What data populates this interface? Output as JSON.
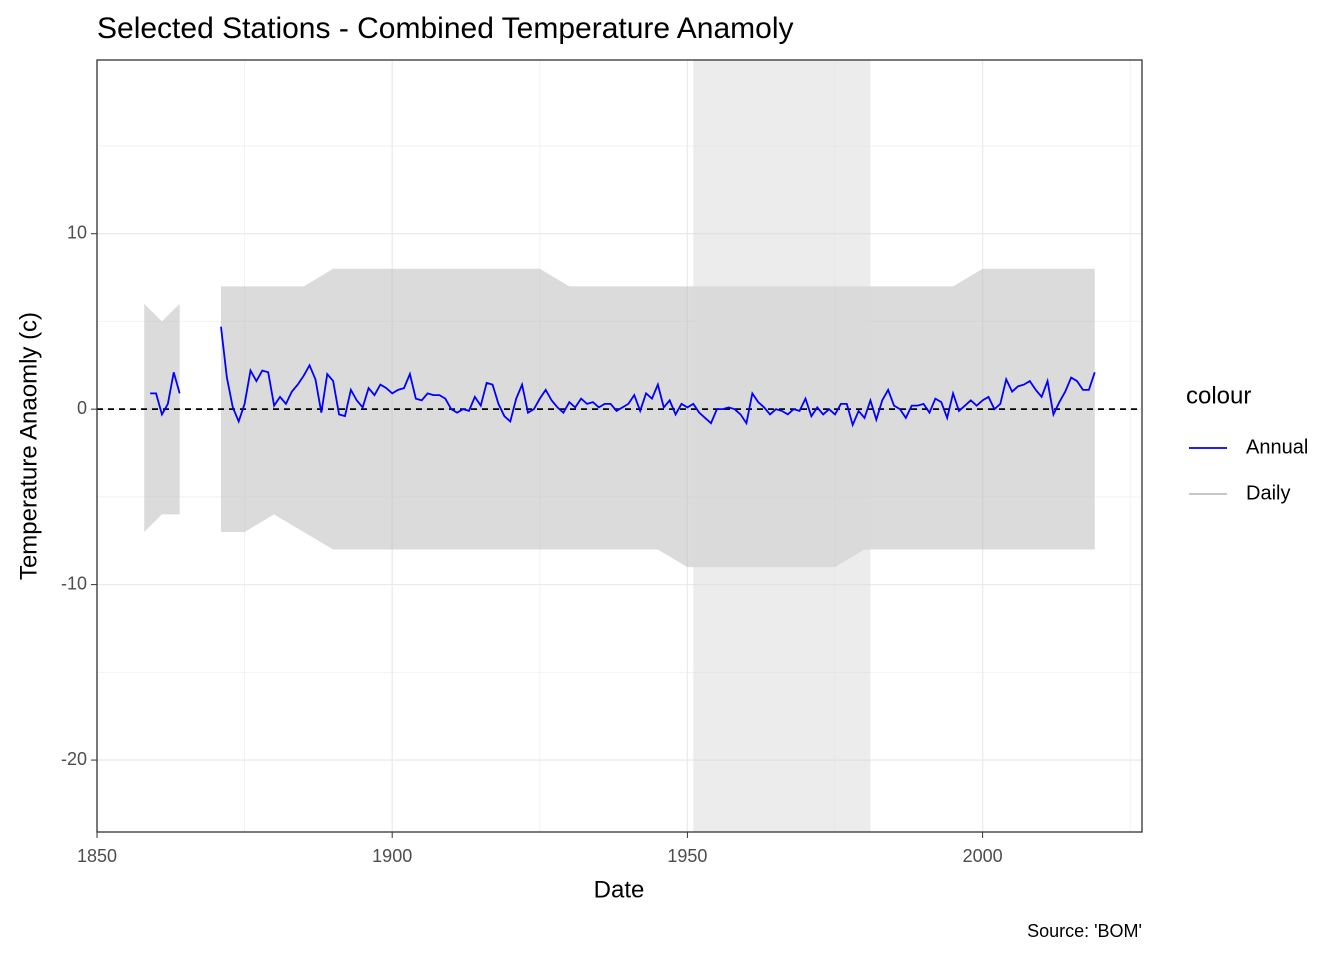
{
  "chart_data": {
    "type": "line",
    "title": "Selected Stations - Combined Temperature Anamoly",
    "x_label": "Date",
    "y_label": "Temperature Anaomly (c)",
    "caption": "Source: 'BOM'",
    "legend_title": "colour",
    "xlim": [
      1850,
      2027
    ],
    "xticks": [
      1850,
      1900,
      1950,
      2000
    ],
    "ylim": [
      -24.1,
      19.9
    ],
    "yticks": [
      -20,
      -10,
      0,
      10
    ],
    "grid": true,
    "hline": 0,
    "highlight": [
      1951,
      1981
    ],
    "legend_position": "right",
    "series": [
      {
        "name": "Annual",
        "color": "#0000ff",
        "x": [
          1859,
          1860,
          1861,
          1862,
          1863,
          1864,
          1865,
          1871,
          1872,
          1873,
          1874,
          1875,
          1876,
          1877,
          1878,
          1879,
          1880,
          1881,
          1882,
          1883,
          1884,
          1885,
          1886,
          1887,
          1888,
          1889,
          1890,
          1891,
          1892,
          1893,
          1894,
          1895,
          1896,
          1897,
          1898,
          1899,
          1900,
          1901,
          1902,
          1903,
          1904,
          1905,
          1906,
          1907,
          1908,
          1909,
          1910,
          1911,
          1912,
          1913,
          1914,
          1915,
          1916,
          1917,
          1918,
          1919,
          1920,
          1921,
          1922,
          1923,
          1924,
          1925,
          1926,
          1927,
          1928,
          1929,
          1930,
          1931,
          1932,
          1933,
          1934,
          1935,
          1936,
          1937,
          1938,
          1939,
          1940,
          1941,
          1942,
          1943,
          1944,
          1945,
          1946,
          1947,
          1948,
          1949,
          1950,
          1951,
          1952,
          1953,
          1954,
          1955,
          1956,
          1957,
          1958,
          1959,
          1960,
          1961,
          1962,
          1963,
          1964,
          1965,
          1966,
          1967,
          1968,
          1969,
          1970,
          1971,
          1972,
          1973,
          1974,
          1975,
          1976,
          1977,
          1978,
          1979,
          1980,
          1981,
          1982,
          1983,
          1984,
          1985,
          1986,
          1987,
          1988,
          1989,
          1990,
          1991,
          1992,
          1993,
          1994,
          1995,
          1996,
          1997,
          1998,
          1999,
          2000,
          2001,
          2002,
          2003,
          2004,
          2005,
          2006,
          2007,
          2008,
          2009,
          2010,
          2011,
          2012,
          2013,
          2014,
          2015,
          2016,
          2017,
          2018,
          2019
        ],
        "values": [
          0.9,
          0.9,
          -0.3,
          0.3,
          2.1,
          0.9,
          null,
          4.7,
          1.8,
          0.1,
          -0.7,
          0.3,
          2.2,
          1.6,
          2.2,
          2.1,
          0.2,
          0.7,
          0.3,
          1.0,
          1.4,
          1.9,
          2.5,
          1.7,
          -0.2,
          2.0,
          1.6,
          -0.3,
          -0.4,
          1.1,
          0.5,
          0.1,
          1.2,
          0.8,
          1.4,
          1.2,
          0.9,
          1.1,
          1.2,
          2.0,
          0.6,
          0.5,
          0.9,
          0.8,
          0.8,
          0.6,
          0.0,
          -0.2,
          0.0,
          -0.1,
          0.7,
          0.2,
          1.5,
          1.4,
          0.3,
          -0.4,
          -0.7,
          0.6,
          1.4,
          -0.2,
          0.0,
          0.6,
          1.1,
          0.5,
          0.1,
          -0.2,
          0.4,
          0.1,
          0.6,
          0.3,
          0.4,
          0.1,
          0.3,
          0.3,
          -0.1,
          0.1,
          0.3,
          0.8,
          -0.1,
          0.9,
          0.6,
          1.4,
          0.1,
          0.5,
          -0.3,
          0.3,
          0.1,
          0.3,
          -0.2,
          -0.5,
          -0.8,
          0.0,
          0.0,
          0.1,
          0.0,
          -0.3,
          -0.8,
          0.9,
          0.4,
          0.1,
          -0.3,
          0.0,
          -0.1,
          -0.3,
          0.0,
          -0.1,
          0.6,
          -0.4,
          0.1,
          -0.3,
          0.0,
          -0.3,
          0.3,
          0.3,
          -0.9,
          -0.1,
          -0.5,
          0.5,
          -0.6,
          0.5,
          1.1,
          0.2,
          0.0,
          -0.5,
          0.2,
          0.2,
          0.3,
          -0.2,
          0.6,
          0.4,
          -0.5,
          0.9,
          -0.1,
          0.2,
          0.5,
          0.2,
          0.5,
          0.7,
          0.0,
          0.3,
          1.7,
          1.0,
          1.3,
          1.4,
          1.6,
          1.1,
          0.7,
          1.6,
          -0.3,
          0.4,
          1.0,
          1.8,
          1.6,
          1.1,
          1.1,
          2.1
        ]
      },
      {
        "name": "Daily",
        "color": "#bebebe",
        "x": [
          1858,
          1861,
          1864,
          1867,
          1871,
          1875,
          1880,
          1885,
          1890,
          1895,
          1900,
          1905,
          1910,
          1915,
          1920,
          1925,
          1930,
          1935,
          1940,
          1945,
          1950,
          1955,
          1960,
          1965,
          1970,
          1975,
          1980,
          1985,
          1990,
          1995,
          2000,
          2005,
          2010,
          2015,
          2019
        ],
        "low": [
          -7,
          -6,
          -6,
          null,
          -7,
          -7,
          -6,
          -7,
          -8,
          -8,
          -8,
          -8,
          -8,
          -8,
          -8,
          -8,
          -8,
          -8,
          -8,
          -8,
          -9,
          -9,
          -9,
          -9,
          -9,
          -9,
          -8,
          -8,
          -8,
          -8,
          -8,
          -8,
          -8,
          -8,
          -8
        ],
        "high": [
          6,
          5,
          6,
          null,
          7,
          7,
          7,
          7,
          8,
          8,
          8,
          8,
          8,
          8,
          8,
          8,
          7,
          7,
          7,
          7,
          7,
          7,
          7,
          7,
          7,
          7,
          7,
          7,
          7,
          7,
          8,
          8,
          8,
          8,
          8
        ]
      }
    ]
  }
}
